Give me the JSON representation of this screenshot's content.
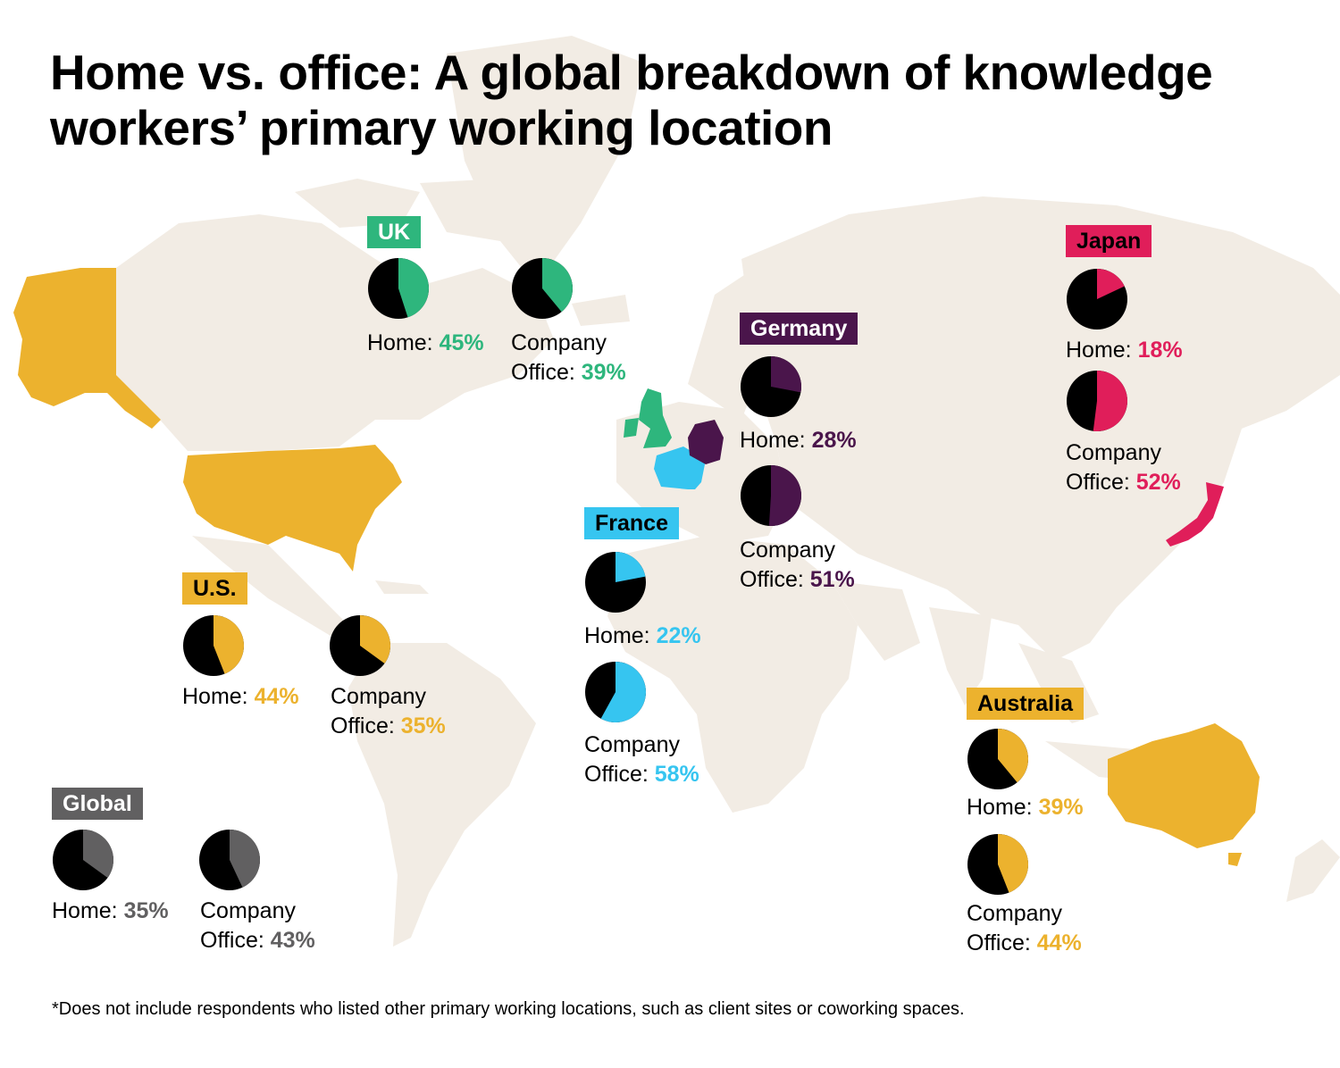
{
  "title": "Home vs. office: A global breakdown of knowledge workers’ primary working location",
  "footnote": "*Does not include respondents who listed other primary working locations, such as client sites or coworking spaces.",
  "labels": {
    "home": "Home: ",
    "company_line1": "Company",
    "office": "Office: "
  },
  "colors": {
    "map_land": "#f2ece4",
    "pie_base": "#000000"
  },
  "chart_data": {
    "type": "pie",
    "regions": [
      {
        "id": "uk",
        "name": "UK",
        "color": "#2eb67d",
        "text_color": "#ffffff",
        "home": 45,
        "company_office": 39,
        "home_label": "45%",
        "office_label": "39%"
      },
      {
        "id": "germany",
        "name": "Germany",
        "color": "#4a154b",
        "text_color": "#ffffff",
        "home": 28,
        "company_office": 51,
        "home_label": "28%",
        "office_label": "51%"
      },
      {
        "id": "japan",
        "name": "Japan",
        "color": "#e01e5a",
        "text_color": "#000000",
        "home": 18,
        "company_office": 52,
        "home_label": "18%",
        "office_label": "52%"
      },
      {
        "id": "france",
        "name": "France",
        "color": "#36c5f0",
        "text_color": "#000000",
        "home": 22,
        "company_office": 58,
        "home_label": "22%",
        "office_label": "58%"
      },
      {
        "id": "us",
        "name": "U.S.",
        "color": "#ecb22e",
        "text_color": "#000000",
        "home": 44,
        "company_office": 35,
        "home_label": "44%",
        "office_label": "35%"
      },
      {
        "id": "australia",
        "name": "Australia",
        "color": "#ecb22e",
        "text_color": "#000000",
        "home": 39,
        "company_office": 44,
        "home_label": "39%",
        "office_label": "44%"
      },
      {
        "id": "global",
        "name": "Global",
        "color": "#616061",
        "text_color": "#ffffff",
        "home": 35,
        "company_office": 43,
        "home_label": "35%",
        "office_label": "43%"
      }
    ]
  }
}
